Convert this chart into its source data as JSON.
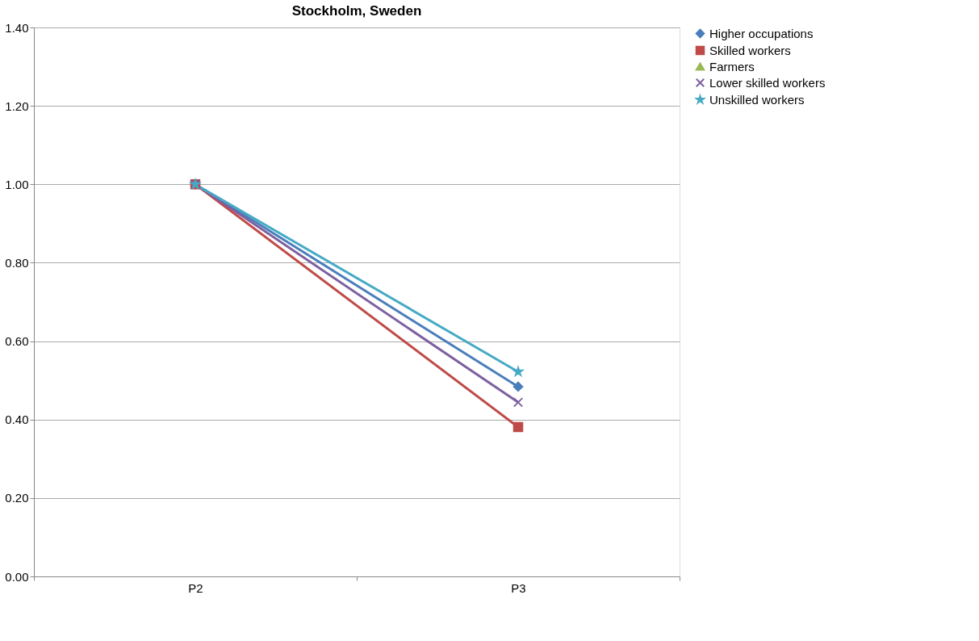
{
  "chart_data": {
    "type": "line",
    "title": "Stockholm, Sweden",
    "categories": [
      "P2",
      "P3"
    ],
    "series": [
      {
        "name": "Higher occupations",
        "color": "#4a7ebb",
        "marker": "diamond",
        "values": [
          1.0,
          0.484
        ]
      },
      {
        "name": "Skilled workers",
        "color": "#be4b48",
        "marker": "square",
        "values": [
          1.0,
          0.381
        ]
      },
      {
        "name": "Farmers",
        "color": "#98b954",
        "marker": "triangle",
        "values": [
          null,
          null
        ]
      },
      {
        "name": "Lower skilled workers",
        "color": "#7d60a0",
        "marker": "cross",
        "values": [
          1.0,
          0.444
        ]
      },
      {
        "name": "Unskilled workers",
        "color": "#46aac5",
        "marker": "star",
        "values": [
          1.0,
          0.522
        ]
      }
    ],
    "ylim": [
      0,
      1.4
    ],
    "yticks": [
      {
        "value": 0,
        "label": "0.00"
      },
      {
        "value": 0.2,
        "label": "0.20"
      },
      {
        "value": 0.4,
        "label": "0.40"
      },
      {
        "value": 0.6,
        "label": "0.60"
      },
      {
        "value": 0.8,
        "label": "0.80"
      },
      {
        "value": 1.0,
        "label": "1.00"
      },
      {
        "value": 1.2,
        "label": "1.20"
      },
      {
        "value": 1.4,
        "label": "1.40"
      }
    ],
    "grid": "y",
    "legend": "right"
  }
}
